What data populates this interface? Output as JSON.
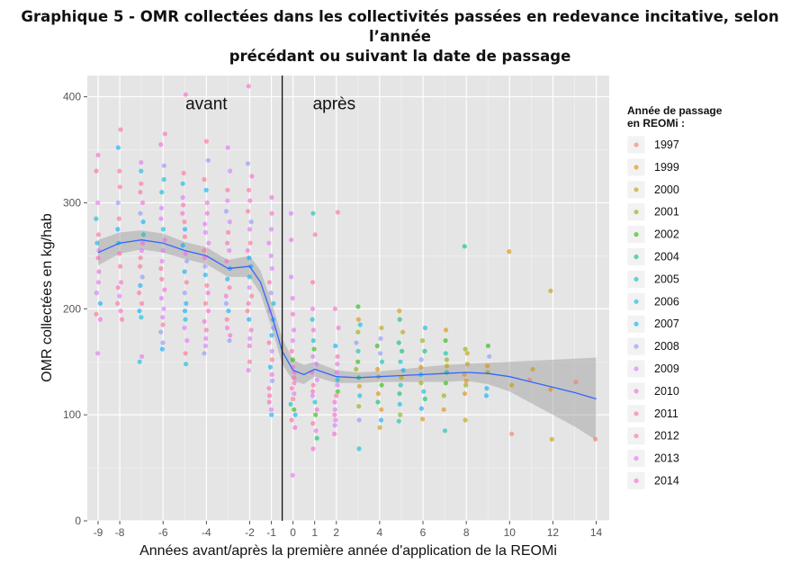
{
  "chart_data": {
    "type": "scatter",
    "title_line1": "Graphique 5 - OMR collectées dans les collectivités passées en redevance incitative, selon l’année",
    "title_line2": "précédant ou suivant la date de passage",
    "xlabel": "Années avant/après la première année d'application de la REOMi",
    "ylabel": "OMR collectées en kg/hab",
    "xlim": [
      -9.5,
      14.6
    ],
    "ylim": [
      0,
      420
    ],
    "x_ticks": [
      "-9",
      "-8",
      "-6",
      "-4",
      "-2",
      "-1",
      "0",
      "1",
      "2",
      "4",
      "6",
      "8",
      "10",
      "12",
      "14"
    ],
    "y_ticks": [
      "0",
      "100",
      "200",
      "300",
      "400"
    ],
    "vline_x": -0.5,
    "annotations": [
      {
        "text": "avant",
        "x": -4.0,
        "y": 388
      },
      {
        "text": "après",
        "x": 1.9,
        "y": 388
      }
    ],
    "legend": {
      "title_line1": "Année de passage",
      "title_line2": "en REOMi :",
      "position": "right",
      "entries": [
        {
          "label": "1997",
          "color": "#f8766d"
        },
        {
          "label": "1999",
          "color": "#e18a00"
        },
        {
          "label": "2000",
          "color": "#be9c00"
        },
        {
          "label": "2001",
          "color": "#8cab00"
        },
        {
          "label": "2002",
          "color": "#24b700"
        },
        {
          "label": "2004",
          "color": "#00be70"
        },
        {
          "label": "2005",
          "color": "#00c1ab"
        },
        {
          "label": "2006",
          "color": "#00bbda"
        },
        {
          "label": "2007",
          "color": "#00acfc"
        },
        {
          "label": "2008",
          "color": "#8b93ff"
        },
        {
          "label": "2009",
          "color": "#d575fe"
        },
        {
          "label": "2010",
          "color": "#f962dd"
        },
        {
          "label": "2011",
          "color": "#ff65ac"
        },
        {
          "label": "2012",
          "color": "#ff6c91"
        },
        {
          "label": "2013",
          "color": "#e76bf3"
        },
        {
          "label": "2014",
          "color": "#fd61d1"
        }
      ]
    },
    "smooth_line": {
      "color": "#3366ff",
      "points": [
        [
          -9,
          253
        ],
        [
          -8,
          262
        ],
        [
          -7,
          265
        ],
        [
          -6,
          262
        ],
        [
          -5,
          255
        ],
        [
          -4,
          250
        ],
        [
          -3,
          238
        ],
        [
          -2,
          240
        ],
        [
          -1.5,
          225
        ],
        [
          -1,
          195
        ],
        [
          -0.5,
          160
        ],
        [
          0,
          142
        ],
        [
          0.5,
          138
        ],
        [
          1,
          143
        ],
        [
          2,
          136
        ],
        [
          3,
          135
        ],
        [
          4,
          136
        ],
        [
          5,
          137
        ],
        [
          6,
          138
        ],
        [
          7,
          139
        ],
        [
          8,
          140
        ],
        [
          9,
          139
        ],
        [
          10,
          136
        ],
        [
          11,
          131
        ],
        [
          12,
          126
        ],
        [
          13,
          121
        ],
        [
          14,
          115
        ]
      ],
      "band_upper": [
        [
          -9,
          265
        ],
        [
          -8,
          272
        ],
        [
          -7,
          274
        ],
        [
          -6,
          271
        ],
        [
          -5,
          263
        ],
        [
          -4,
          258
        ],
        [
          -3,
          246
        ],
        [
          -2,
          250
        ],
        [
          -1.5,
          236
        ],
        [
          -1,
          207
        ],
        [
          -0.5,
          172
        ],
        [
          0,
          152
        ],
        [
          0.5,
          147
        ],
        [
          1,
          150
        ],
        [
          2,
          142
        ],
        [
          3,
          140
        ],
        [
          4,
          141
        ],
        [
          5,
          143
        ],
        [
          6,
          145
        ],
        [
          7,
          147
        ],
        [
          8,
          148
        ],
        [
          9,
          149
        ],
        [
          10,
          150
        ],
        [
          11,
          151
        ],
        [
          12,
          152
        ],
        [
          13,
          153
        ],
        [
          14,
          154
        ]
      ],
      "band_lower": [
        [
          -9,
          241
        ],
        [
          -8,
          252
        ],
        [
          -7,
          256
        ],
        [
          -6,
          253
        ],
        [
          -5,
          247
        ],
        [
          -4,
          242
        ],
        [
          -3,
          230
        ],
        [
          -2,
          230
        ],
        [
          -1.5,
          214
        ],
        [
          -1,
          183
        ],
        [
          -0.5,
          148
        ],
        [
          0,
          132
        ],
        [
          0.5,
          129
        ],
        [
          1,
          136
        ],
        [
          2,
          130
        ],
        [
          3,
          130
        ],
        [
          4,
          131
        ],
        [
          5,
          131
        ],
        [
          6,
          131
        ],
        [
          7,
          131
        ],
        [
          8,
          132
        ],
        [
          9,
          129
        ],
        [
          10,
          122
        ],
        [
          11,
          111
        ],
        [
          12,
          100
        ],
        [
          13,
          89
        ],
        [
          14,
          76
        ]
      ]
    },
    "points": [
      {
        "x": -9,
        "y": [
          345,
          330,
          300,
          285,
          270,
          262,
          255,
          248,
          235,
          225,
          215,
          205,
          195,
          190,
          158
        ]
      },
      {
        "x": -8,
        "y": [
          369,
          352,
          330,
          315,
          300,
          285,
          275,
          262,
          252,
          240,
          225,
          220,
          212,
          205,
          198,
          190
        ]
      },
      {
        "x": -7,
        "y": [
          338,
          330,
          318,
          310,
          300,
          290,
          282,
          270,
          262,
          255,
          248,
          240,
          230,
          222,
          215,
          205,
          198,
          192,
          155,
          150
        ]
      },
      {
        "x": -6,
        "y": [
          365,
          355,
          335,
          322,
          310,
          295,
          285,
          275,
          265,
          255,
          245,
          238,
          228,
          218,
          210,
          200,
          192,
          185,
          178,
          168,
          162
        ]
      },
      {
        "x": -5,
        "y": [
          402,
          328,
          318,
          305,
          298,
          290,
          282,
          275,
          268,
          260,
          252,
          245,
          235,
          225,
          215,
          205,
          198,
          190,
          182,
          170,
          158,
          148
        ]
      },
      {
        "x": -4,
        "y": [
          358,
          340,
          322,
          312,
          300,
          290,
          280,
          272,
          262,
          255,
          248,
          240,
          232,
          222,
          215,
          205,
          198,
          188,
          180,
          172,
          165,
          158
        ]
      },
      {
        "x": -3,
        "y": [
          352,
          330,
          312,
          302,
          292,
          282,
          272,
          262,
          255,
          245,
          238,
          228,
          220,
          212,
          205,
          198,
          190,
          182,
          175,
          170
        ]
      },
      {
        "x": -2,
        "y": [
          410,
          337,
          325,
          312,
          302,
          292,
          282,
          275,
          262,
          255,
          248,
          240,
          230,
          220,
          212,
          205,
          198,
          190,
          180,
          172,
          165,
          150,
          142
        ]
      },
      {
        "x": -1,
        "y": [
          305,
          290,
          275,
          262,
          250,
          238,
          225,
          215,
          205,
          198,
          190,
          182,
          175,
          168,
          160,
          152,
          145,
          138,
          132,
          125,
          118,
          112,
          105,
          100
        ]
      },
      {
        "x": 0,
        "y": [
          290,
          265,
          230,
          210,
          195,
          180,
          170,
          160,
          152,
          145,
          140,
          135,
          130,
          125,
          120,
          115,
          110,
          105,
          100,
          95,
          88,
          43
        ]
      },
      {
        "x": 1,
        "y": [
          290,
          270,
          225,
          200,
          190,
          180,
          170,
          162,
          155,
          148,
          140,
          133,
          128,
          122,
          118,
          112,
          105,
          100,
          92,
          85,
          78,
          68
        ]
      },
      {
        "x": 2,
        "y": [
          291,
          200,
          182,
          165,
          155,
          148,
          140,
          133,
          128,
          122,
          118,
          112,
          105,
          100,
          95,
          90,
          82
        ]
      },
      {
        "x": 3,
        "y": [
          202,
          190,
          185,
          178,
          168,
          160,
          150,
          143,
          135,
          127,
          118,
          108,
          95,
          68
        ]
      },
      {
        "x": 4,
        "y": [
          182,
          172,
          165,
          158,
          150,
          143,
          136,
          128,
          120,
          112,
          105,
          95,
          88
        ]
      },
      {
        "x": 5,
        "y": [
          198,
          190,
          178,
          168,
          160,
          150,
          142,
          135,
          128,
          120,
          110,
          100,
          94
        ]
      },
      {
        "x": 6,
        "y": [
          182,
          170,
          160,
          152,
          145,
          138,
          130,
          122,
          115,
          106,
          96
        ]
      },
      {
        "x": 7,
        "y": [
          180,
          170,
          158,
          152,
          146,
          140,
          130,
          118,
          105,
          85
        ]
      },
      {
        "x": 8,
        "y": [
          259,
          162,
          158,
          148,
          138,
          132,
          128,
          120,
          95
        ]
      },
      {
        "x": 9,
        "y": [
          165,
          155,
          146,
          140,
          125,
          118
        ]
      },
      {
        "x": 10,
        "y": [
          254,
          128,
          82
        ]
      },
      {
        "x": 11,
        "y": [
          143,
          133
        ]
      },
      {
        "x": 12,
        "y": [
          217,
          124,
          77
        ]
      },
      {
        "x": 13,
        "y": [
          131
        ]
      },
      {
        "x": 14,
        "y": [
          77
        ]
      }
    ]
  }
}
